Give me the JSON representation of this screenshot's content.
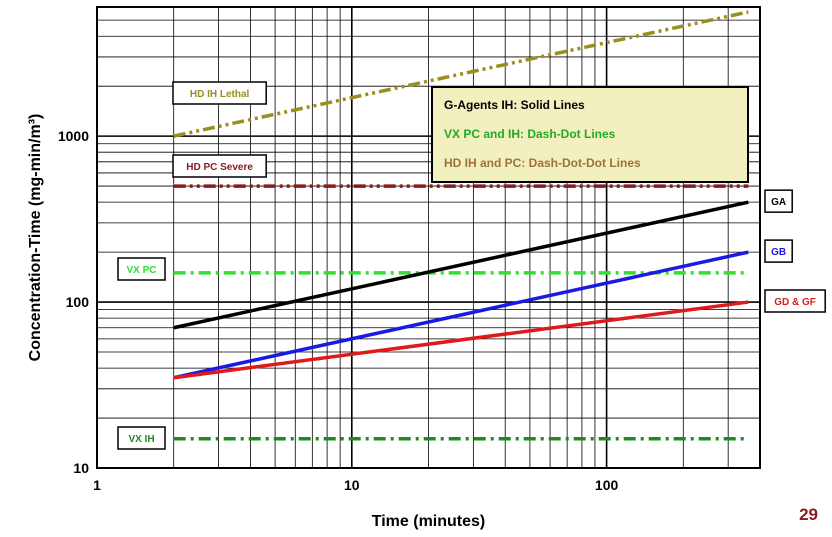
{
  "page_number": "29",
  "colors": {
    "ga": "#000000",
    "gb": "#1a1ae6",
    "gdgf": "#e01a1a",
    "hd_lethal": "#9a8f1c",
    "hd_severe": "#8b1a1a",
    "vx_pc": "#33dd33",
    "vx_ih": "#1f8a1f",
    "legend_bg": "#f3f0c0"
  },
  "chart_data": {
    "type": "line",
    "title": "",
    "xlabel": "Time (minutes)",
    "ylabel": "Concentration-Time (mg-min/m³)",
    "xscale": "log",
    "yscale": "log",
    "xlim": [
      1,
      400
    ],
    "ylim": [
      10,
      6000
    ],
    "grid": true,
    "x_ticks": [
      "1",
      "10",
      "100"
    ],
    "y_ticks": [
      "10",
      "100",
      "1000"
    ],
    "legend": {
      "placement": "top-right",
      "entries": [
        {
          "text": "G-Agents IH:  Solid Lines",
          "color": "#000000"
        },
        {
          "text": "VX PC and IH:  Dash-Dot Lines",
          "color": "#22aa22"
        },
        {
          "text": "HD IH and PC:  Dash-Dot-Dot Lines",
          "color": "#a0703a"
        }
      ]
    },
    "series": [
      {
        "name": "HD IH Lethal",
        "style": "dash-dot-dot",
        "x": [
          2,
          360
        ],
        "y": [
          1000,
          5600
        ],
        "label_side": "left"
      },
      {
        "name": "HD PC Severe",
        "style": "dash-dot-dot",
        "x": [
          2,
          360
        ],
        "y": [
          500,
          500
        ],
        "label_side": "left"
      },
      {
        "name": "VX PC",
        "style": "dash-dot",
        "x": [
          2,
          360
        ],
        "y": [
          150,
          150
        ],
        "label_side": "left"
      },
      {
        "name": "VX IH",
        "style": "dash-dot",
        "x": [
          2,
          360
        ],
        "y": [
          15,
          15
        ],
        "label_side": "left"
      },
      {
        "name": "GA",
        "style": "solid",
        "x": [
          2,
          360
        ],
        "y": [
          70,
          400
        ],
        "label_side": "right"
      },
      {
        "name": "GB",
        "style": "solid",
        "x": [
          2,
          360
        ],
        "y": [
          35,
          200
        ],
        "label_side": "right"
      },
      {
        "name": "GD & GF",
        "style": "solid",
        "x": [
          2,
          360
        ],
        "y": [
          35,
          100
        ],
        "label_side": "right"
      }
    ]
  }
}
